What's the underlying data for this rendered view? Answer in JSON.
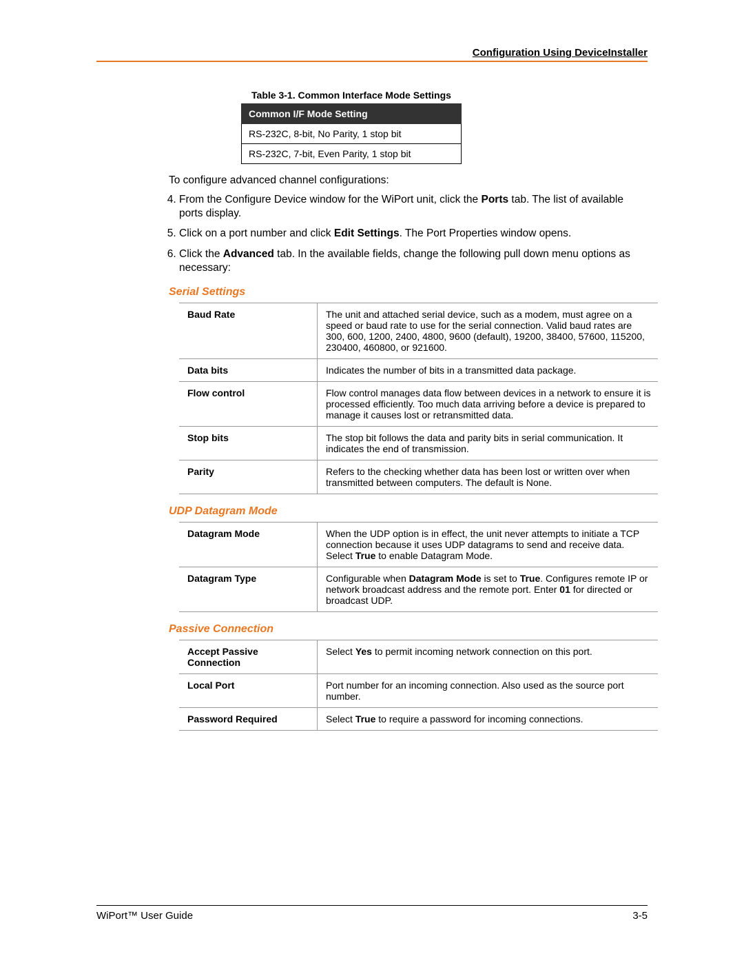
{
  "header": {
    "title": "Configuration Using DeviceInstaller"
  },
  "table31": {
    "caption": "Table 3-1. Common Interface Mode Settings",
    "header": "Common I/F Mode Setting",
    "rows": [
      "RS-232C, 8-bit, No Parity, 1 stop bit",
      "RS-232C, 7-bit, Even Parity, 1 stop bit"
    ]
  },
  "intro": "To configure advanced channel configurations:",
  "steps": [
    {
      "num": "4",
      "html": "From the Configure Device window for the WiPort unit, click the <b>Ports</b> tab.  The list of available ports display."
    },
    {
      "num": "5",
      "html": "Click on a port number and click <b>Edit Settings</b>. The Port Properties window opens."
    },
    {
      "num": "6",
      "html": "Click the <b>Advanced</b> tab.  In the available fields, change the following pull down menu options as necessary:"
    }
  ],
  "serial": {
    "heading": "Serial Settings",
    "rows": [
      {
        "label": "Baud Rate",
        "desc": "The unit and attached serial device, such as a modem, must agree on a speed or baud rate to use for the serial connection. Valid baud rates are 300, 600, 1200, 2400, 4800, 9600 (default), 19200, 38400, 57600, 115200, 230400, 460800, or 921600."
      },
      {
        "label": "Data bits",
        "desc": "Indicates the number of bits in a transmitted data package."
      },
      {
        "label": "Flow control",
        "desc": "Flow control manages data flow between devices in a network to ensure it is processed efficiently.  Too much data arriving before a device is prepared to manage it causes lost or retransmitted data."
      },
      {
        "label": "Stop bits",
        "desc": "The stop bit follows the data and parity bits in serial communication.  It indicates the end of transmission."
      },
      {
        "label": "Parity",
        "desc": "Refers to the checking whether data has been lost or written over when transmitted between computers.  The default is None."
      }
    ]
  },
  "udp": {
    "heading": "UDP Datagram Mode",
    "rows": [
      {
        "label": "Datagram Mode",
        "desc": "When the UDP option is in effect, the unit never attempts to initiate a TCP connection because it uses UDP datagrams to send and receive data.  Select <b>True</b> to enable Datagram Mode."
      },
      {
        "label": "Datagram Type",
        "desc": "Configurable when <b>Datagram Mode</b> is set to <b>True</b>. Configures remote IP or network broadcast address and the remote port.  Enter <b>01</b> for directed or broadcast UDP."
      }
    ]
  },
  "passive": {
    "heading": "Passive Connection",
    "rows": [
      {
        "label": "Accept Passive Connection",
        "desc": "Select <b>Yes</b> to permit incoming network connection on this port."
      },
      {
        "label": "Local Port",
        "desc": "Port number for an incoming connection.  Also used as the source port number."
      },
      {
        "label": "Password Required",
        "desc": "Select <b>True</b> to require a password for incoming connections."
      }
    ]
  },
  "footer": {
    "left": "WiPort™ User Guide",
    "right": "3-5"
  }
}
